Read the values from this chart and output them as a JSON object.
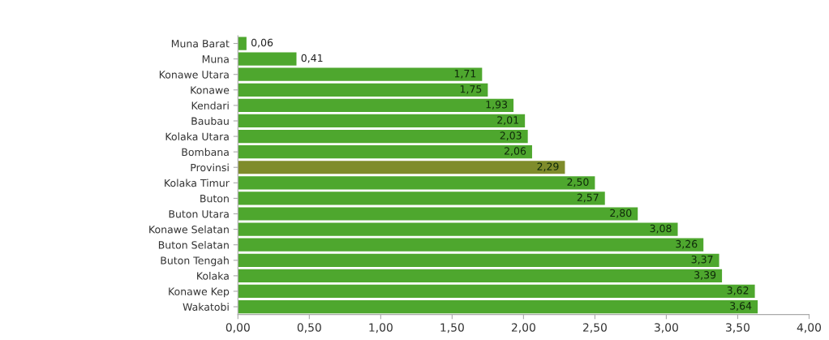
{
  "chart_data": {
    "type": "bar",
    "orientation": "horizontal",
    "categories": [
      "Muna Barat",
      "Muna",
      "Konawe Utara",
      "Konawe",
      "Kendari",
      "Baubau",
      "Kolaka Utara",
      "Bombana",
      "Provinsi",
      "Kolaka Timur",
      "Buton",
      "Buton Utara",
      "Konawe Selatan",
      "Buton Selatan",
      "Buton Tengah",
      "Kolaka",
      "Konawe Kep",
      "Wakatobi"
    ],
    "values": [
      0.06,
      0.41,
      1.71,
      1.75,
      1.93,
      2.01,
      2.03,
      2.06,
      2.29,
      2.5,
      2.57,
      2.8,
      3.08,
      3.26,
      3.37,
      3.39,
      3.62,
      3.64
    ],
    "colors": [
      "#4ea72e",
      "#4ea72e",
      "#4ea72e",
      "#4ea72e",
      "#4ea72e",
      "#4ea72e",
      "#4ea72e",
      "#4ea72e",
      "#7f8c2b",
      "#4ea72e",
      "#4ea72e",
      "#4ea72e",
      "#4ea72e",
      "#4ea72e",
      "#4ea72e",
      "#4ea72e",
      "#4ea72e",
      "#4ea72e"
    ],
    "value_labels": [
      "0,06",
      "0,41",
      "1,71",
      "1,75",
      "1,93",
      "2,01",
      "2,03",
      "2,06",
      "2,29",
      "2,50",
      "2,57",
      "2,80",
      "3,08",
      "3,26",
      "3,37",
      "3,39",
      "3,62",
      "3,64"
    ],
    "xlim": [
      0,
      4
    ],
    "xticks": [
      {
        "value": 0,
        "label": "0,00"
      },
      {
        "value": 0.5,
        "label": "0,50"
      },
      {
        "value": 1,
        "label": "1,00"
      },
      {
        "value": 1.5,
        "label": "1,50"
      },
      {
        "value": 2,
        "label": "2,00"
      },
      {
        "value": 2.5,
        "label": "2,50"
      },
      {
        "value": 3,
        "label": "3,00"
      },
      {
        "value": 3.5,
        "label": "3,50"
      },
      {
        "value": 4,
        "label": "4,00"
      }
    ],
    "grid": false,
    "legend": false
  }
}
